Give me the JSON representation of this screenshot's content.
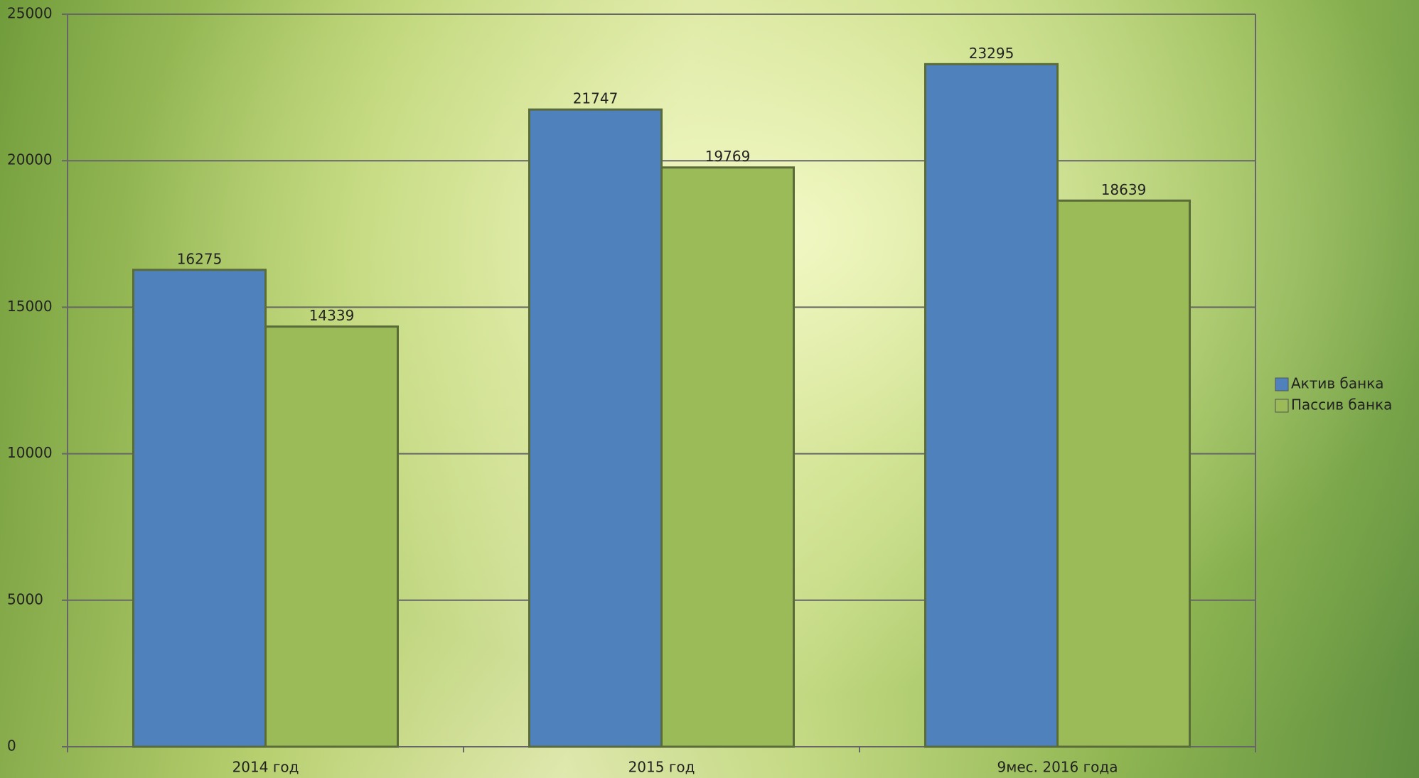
{
  "chart_data": {
    "type": "bar",
    "categories": [
      "2014 год",
      "2015 год",
      "9мес. 2016 года"
    ],
    "series": [
      {
        "name": "Актив банка",
        "color": "#4f81bd",
        "values": [
          16275,
          21747,
          23295
        ]
      },
      {
        "name": "Пассив банка",
        "color": "#9bbb59",
        "values": [
          14339,
          19769,
          18639
        ]
      }
    ],
    "ylim": [
      0,
      25000
    ],
    "yticks": [
      0,
      5000,
      10000,
      15000,
      20000,
      25000
    ],
    "grid": true,
    "legend": "right"
  }
}
